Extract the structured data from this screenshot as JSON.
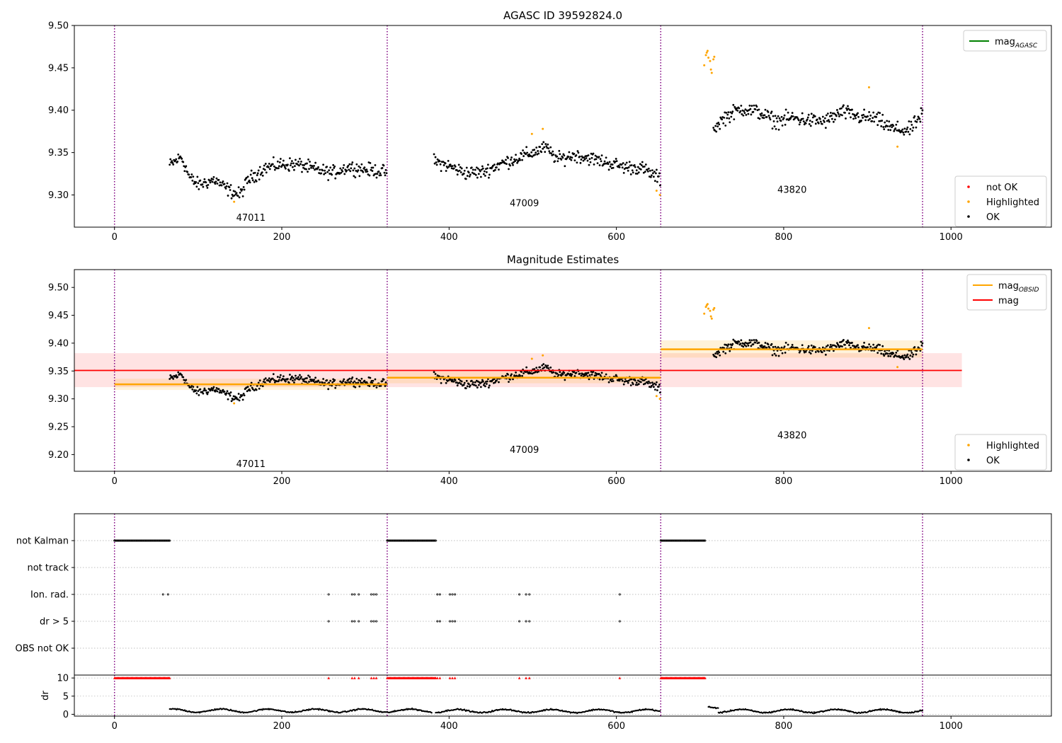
{
  "chart_data": [
    {
      "type": "scatter",
      "title": "AGASC ID 39592824.0",
      "xlim": [
        -48,
        1120
      ],
      "ylim": [
        9.262,
        9.5
      ],
      "xticks": [
        0,
        200,
        400,
        600,
        800,
        1000
      ],
      "yticks": [
        9.3,
        9.35,
        9.4,
        9.45,
        9.5
      ],
      "observation_boundaries": [
        0,
        326,
        653,
        966
      ],
      "observation_labels": [
        {
          "text": "47011",
          "x": 163,
          "y": 9.273
        },
        {
          "text": "47009",
          "x": 490,
          "y": 9.29
        },
        {
          "text": "43820",
          "x": 810,
          "y": 9.306
        }
      ],
      "legend_top": {
        "position": "top-right",
        "entries": [
          {
            "label": "mag",
            "subscript": "AGASC",
            "color": "#008000"
          }
        ]
      },
      "legend_bottom": {
        "position": "bottom-right",
        "entries": [
          {
            "label": "not OK",
            "color": "#ff0000"
          },
          {
            "label": "Highlighted",
            "color": "#ffa500"
          },
          {
            "label": "OK",
            "color": "#000000"
          }
        ]
      },
      "series": [
        {
          "name": "OK",
          "segments": [
            {
              "x": [
                66,
                80,
                90,
                100,
                110,
                120,
                130,
                140,
                150,
                160,
                170,
                180,
                190,
                200,
                220,
                240,
                260,
                280,
                300,
                326
              ],
              "y": [
                9.335,
                9.345,
                9.32,
                9.312,
                9.315,
                9.318,
                9.31,
                9.304,
                9.3,
                9.318,
                9.325,
                9.332,
                9.334,
                9.336,
                9.336,
                9.33,
                9.326,
                9.333,
                9.33,
                9.327
              ],
              "spread": 0.009
            },
            {
              "x": [
                382,
                400,
                420,
                440,
                460,
                480,
                500,
                515,
                530,
                550,
                570,
                590,
                610,
                630,
                653
              ],
              "y": [
                9.34,
                9.334,
                9.326,
                9.327,
                9.336,
                9.343,
                9.35,
                9.356,
                9.342,
                9.347,
                9.343,
                9.338,
                9.333,
                9.332,
                9.318
              ],
              "spread": 0.009
            },
            {
              "x": [
                716,
                730,
                750,
                770,
                790,
                810,
                830,
                850,
                870,
                890,
                910,
                930,
                950,
                966
              ],
              "y": [
                9.378,
                9.392,
                9.402,
                9.398,
                9.387,
                9.391,
                9.388,
                9.387,
                9.398,
                9.392,
                9.39,
                9.378,
                9.376,
                9.395
              ],
              "spread": 0.01
            }
          ]
        },
        {
          "name": "Highlighted",
          "points": [
            [
              143,
              9.292
            ],
            [
              499,
              9.372
            ],
            [
              512,
              9.378
            ],
            [
              648,
              9.305
            ],
            [
              652,
              9.3
            ],
            [
              705,
              9.453
            ],
            [
              707,
              9.465
            ],
            [
              708,
              9.468
            ],
            [
              709,
              9.47
            ],
            [
              710,
              9.462
            ],
            [
              712,
              9.458
            ],
            [
              713,
              9.448
            ],
            [
              714,
              9.444
            ],
            [
              716,
              9.46
            ],
            [
              717,
              9.463
            ],
            [
              902,
              9.427
            ],
            [
              936,
              9.357
            ]
          ]
        }
      ]
    },
    {
      "type": "scatter",
      "title": "Magnitude Estimates",
      "xlim": [
        -48,
        1120
      ],
      "ylim": [
        9.17,
        9.532
      ],
      "xticks": [
        0,
        200,
        400,
        600,
        800,
        1000
      ],
      "yticks": [
        9.2,
        9.25,
        9.3,
        9.35,
        9.4,
        9.45,
        9.5
      ],
      "observation_labels": [
        {
          "text": "47011",
          "x": 163,
          "y": 9.183
        },
        {
          "text": "47009",
          "x": 490,
          "y": 9.208
        },
        {
          "text": "43820",
          "x": 810,
          "y": 9.234
        }
      ],
      "legend_top": {
        "position": "top-right",
        "entries": [
          {
            "label": "mag",
            "subscript": "OBSID",
            "color": "#ffa500"
          },
          {
            "label": "mag",
            "color": "#ff0000"
          }
        ]
      },
      "legend_bottom": {
        "position": "bottom-right",
        "entries": [
          {
            "label": "Highlighted",
            "color": "#ffa500"
          },
          {
            "label": "OK",
            "color": "#000000"
          }
        ]
      },
      "mag": {
        "value": 9.351,
        "band": [
          9.321,
          9.382
        ],
        "x": [
          -48,
          1013
        ]
      },
      "mag_obsid": [
        {
          "x": [
            0,
            326
          ],
          "value": 9.326,
          "band": [
            9.316,
            9.336
          ]
        },
        {
          "x": [
            326,
            653
          ],
          "value": 9.338,
          "band": [
            9.328,
            9.349
          ]
        },
        {
          "x": [
            653,
            966
          ],
          "value": 9.389,
          "band": [
            9.374,
            9.405
          ]
        }
      ]
    },
    {
      "type": "scatter",
      "title": "",
      "xlim": [
        -48,
        1120
      ],
      "yticks_categorical": [
        "not Kalman",
        "not track",
        "Ion. rad.",
        "dr > 5",
        "OBS not OK"
      ],
      "flags": [
        {
          "label": "not Kalman",
          "ranges": [
            [
              0,
              66
            ],
            [
              326,
              384
            ],
            [
              653,
              706
            ]
          ],
          "points": []
        },
        {
          "label": "not track",
          "ranges": [],
          "points": []
        },
        {
          "label": "Ion. rad.",
          "ranges": [],
          "points": [
            58,
            64,
            256,
            284,
            287,
            292,
            307,
            310,
            313,
            386,
            389,
            401,
            404,
            407,
            484,
            492,
            496,
            604
          ]
        },
        {
          "label": "dr > 5",
          "ranges": [],
          "points": [
            256,
            284,
            287,
            292,
            307,
            310,
            313,
            386,
            389,
            401,
            404,
            407,
            484,
            492,
            496,
            604
          ]
        },
        {
          "label": "OBS not OK",
          "ranges": [],
          "points": []
        }
      ]
    },
    {
      "type": "scatter",
      "xlim": [
        -48,
        1120
      ],
      "ylim": [
        -0.5,
        10.8
      ],
      "ylabel": "dr",
      "yticks": [
        0,
        5,
        10
      ],
      "xticks": [
        0,
        200,
        400,
        600,
        800,
        1000
      ],
      "red_markers_at_10": {
        "ranges": [
          [
            0,
            66
          ],
          [
            326,
            384
          ],
          [
            653,
            706
          ]
        ],
        "points": [
          256,
          284,
          287,
          292,
          307,
          310,
          313,
          386,
          389,
          401,
          404,
          407,
          484,
          492,
          496,
          604
        ]
      },
      "dr_segments": [
        {
          "x": [
            66,
            380
          ],
          "baseline": 1.0,
          "spread": 0.6
        },
        {
          "x": [
            384,
            653
          ],
          "baseline": 0.9,
          "spread": 0.6
        },
        {
          "x": [
            710,
            722
          ],
          "baseline": 2.2,
          "spread": 0.5
        },
        {
          "x": [
            722,
            966
          ],
          "baseline": 0.9,
          "spread": 0.6
        }
      ]
    }
  ]
}
